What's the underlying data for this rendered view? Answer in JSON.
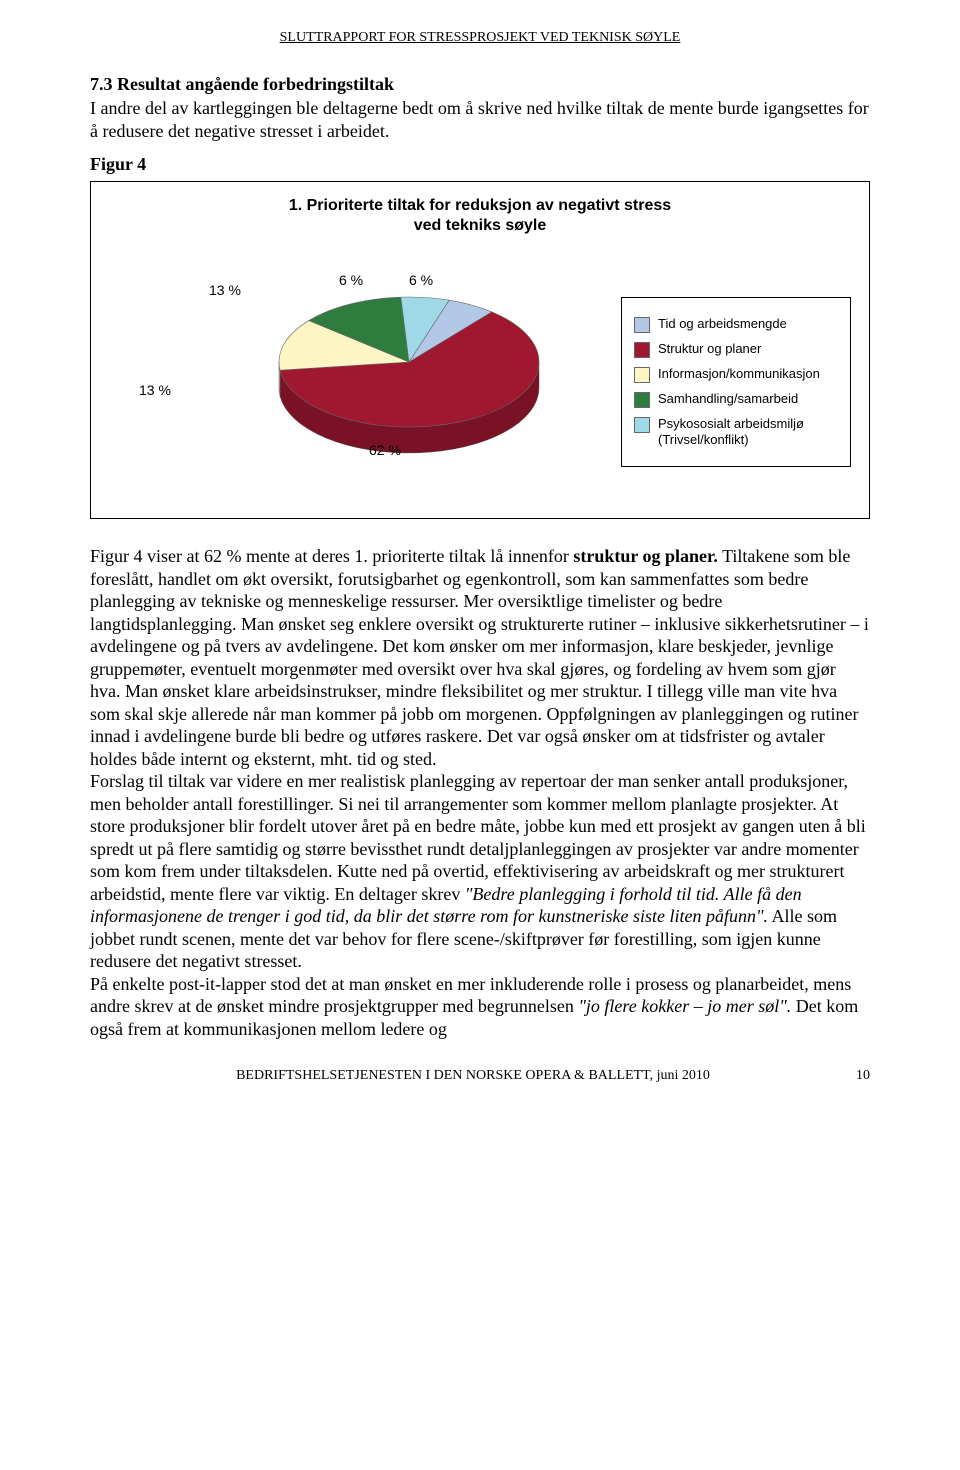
{
  "header": "SLUTTRAPPORT FOR STRESSPROSJEKT VED TEKNISK SØYLE",
  "section_title": "7.3 Resultat angående forbedringstiltak",
  "intro": "I andre del av kartleggingen ble deltagerne bedt om å skrive ned hvilke tiltak de mente burde igangsettes for å redusere det negative stresset i arbeidet.",
  "figure_label": "Figur 4",
  "chart": {
    "title_line1": "1. Prioriterte tiltak for reduksjon av negativt stress",
    "title_line2": "ved tekniks søyle",
    "type": "pie3d",
    "slices": [
      {
        "label": "Tid og arbeidsmengde",
        "value": 6,
        "color": "#b3c7e6",
        "tcolor": "#8fa8d0"
      },
      {
        "label": "Struktur og planer",
        "value": 62,
        "color": "#a01830",
        "tcolor": "#7a1225"
      },
      {
        "label": "Informasjon/kommunikasjon",
        "value": 13,
        "color": "#fdf5c4",
        "tcolor": "#d6ce99"
      },
      {
        "label": "Samhandling/samarbeid",
        "value": 13,
        "color": "#2e7d3f",
        "tcolor": "#225e30"
      },
      {
        "label": "Psykososialt arbeidsmiljø (Trivsel/konflikt)",
        "value": 6,
        "color": "#9fd9e8",
        "tcolor": "#78b4c2"
      }
    ],
    "pie_labels": {
      "l0": "6 %",
      "l1": "62 %",
      "l2": "13 %",
      "l3": "13 %",
      "l4": "6 %"
    },
    "legend_labels": {
      "i0": "Tid og arbeidsmengde",
      "i1": "Struktur og planer",
      "i2": "Informasjon/kommunikasjon",
      "i3": "Samhandling/samarbeid",
      "i4": "Psykososialt arbeidsmiljø (Trivsel/konflikt)"
    },
    "label_font": 14,
    "legend_font": 13,
    "title_font": 16
  },
  "body": {
    "p1a": "Figur 4 viser at 62 % mente at deres 1. prioriterte tiltak lå innenfor ",
    "p1b": "struktur og planer.",
    "p1c": " Tiltakene som ble foreslått, handlet om økt oversikt, forutsigbarhet og egenkontroll, som kan sammenfattes som bedre planlegging av tekniske og menneskelige ressurser. Mer oversiktlige timelister og bedre langtidsplanlegging. Man ønsket seg enklere oversikt og strukturerte rutiner – inklusive sikkerhetsrutiner – i avdelingene og på tvers av avdelingene. Det kom ønsker om mer informasjon, klare beskjeder, jevnlige gruppemøter, eventuelt morgenmøter med oversikt over hva skal gjøres, og fordeling av hvem som gjør hva. Man ønsket klare arbeidsinstrukser, mindre fleksibilitet og mer struktur. I tillegg ville man vite hva som skal skje allerede når man kommer på jobb om morgenen. Oppfølgningen av planleggingen og rutiner innad i avdelingene burde bli bedre og utføres raskere. Det var også ønsker om at tidsfrister og avtaler holdes både internt og eksternt, mht. tid og sted.",
    "p2a": "Forslag til tiltak var videre en mer realistisk planlegging av repertoar der man senker antall produksjoner, men beholder antall forestillinger. Si nei til arrangementer som kommer mellom planlagte prosjekter. At store produksjoner blir fordelt utover året på en bedre måte, jobbe kun med ett prosjekt av gangen uten å bli spredt ut på flere samtidig og større bevissthet rundt detaljplanleggingen av prosjekter var andre momenter som kom frem under tiltaksdelen. Kutte ned på overtid, effektivisering av arbeidskraft og mer strukturert arbeidstid, mente flere var viktig. En deltager skrev ",
    "p2b": "\"Bedre planlegging i forhold til tid. Alle få den informasjonene de trenger i god tid, da blir det større rom for kunstneriske siste liten påfunn\".",
    "p2c": " Alle som jobbet rundt scenen, mente det var behov for flere scene-/skiftprøver før forestilling, som igjen kunne redusere det negativt stresset.",
    "p3a": "På enkelte post-it-lapper stod det at man ønsket en mer inkluderende rolle i prosess og planarbeidet, mens andre skrev at de ønsket mindre prosjektgrupper med begrunnelsen ",
    "p3b": "\"jo flere kokker – jo mer søl\".",
    "p3c": " Det kom også frem at kommunikasjonen mellom ledere og"
  },
  "footer": "BEDRIFTSHELSETJENESTEN I DEN NORSKE OPERA & BALLETT, juni 2010",
  "page_number": "10"
}
